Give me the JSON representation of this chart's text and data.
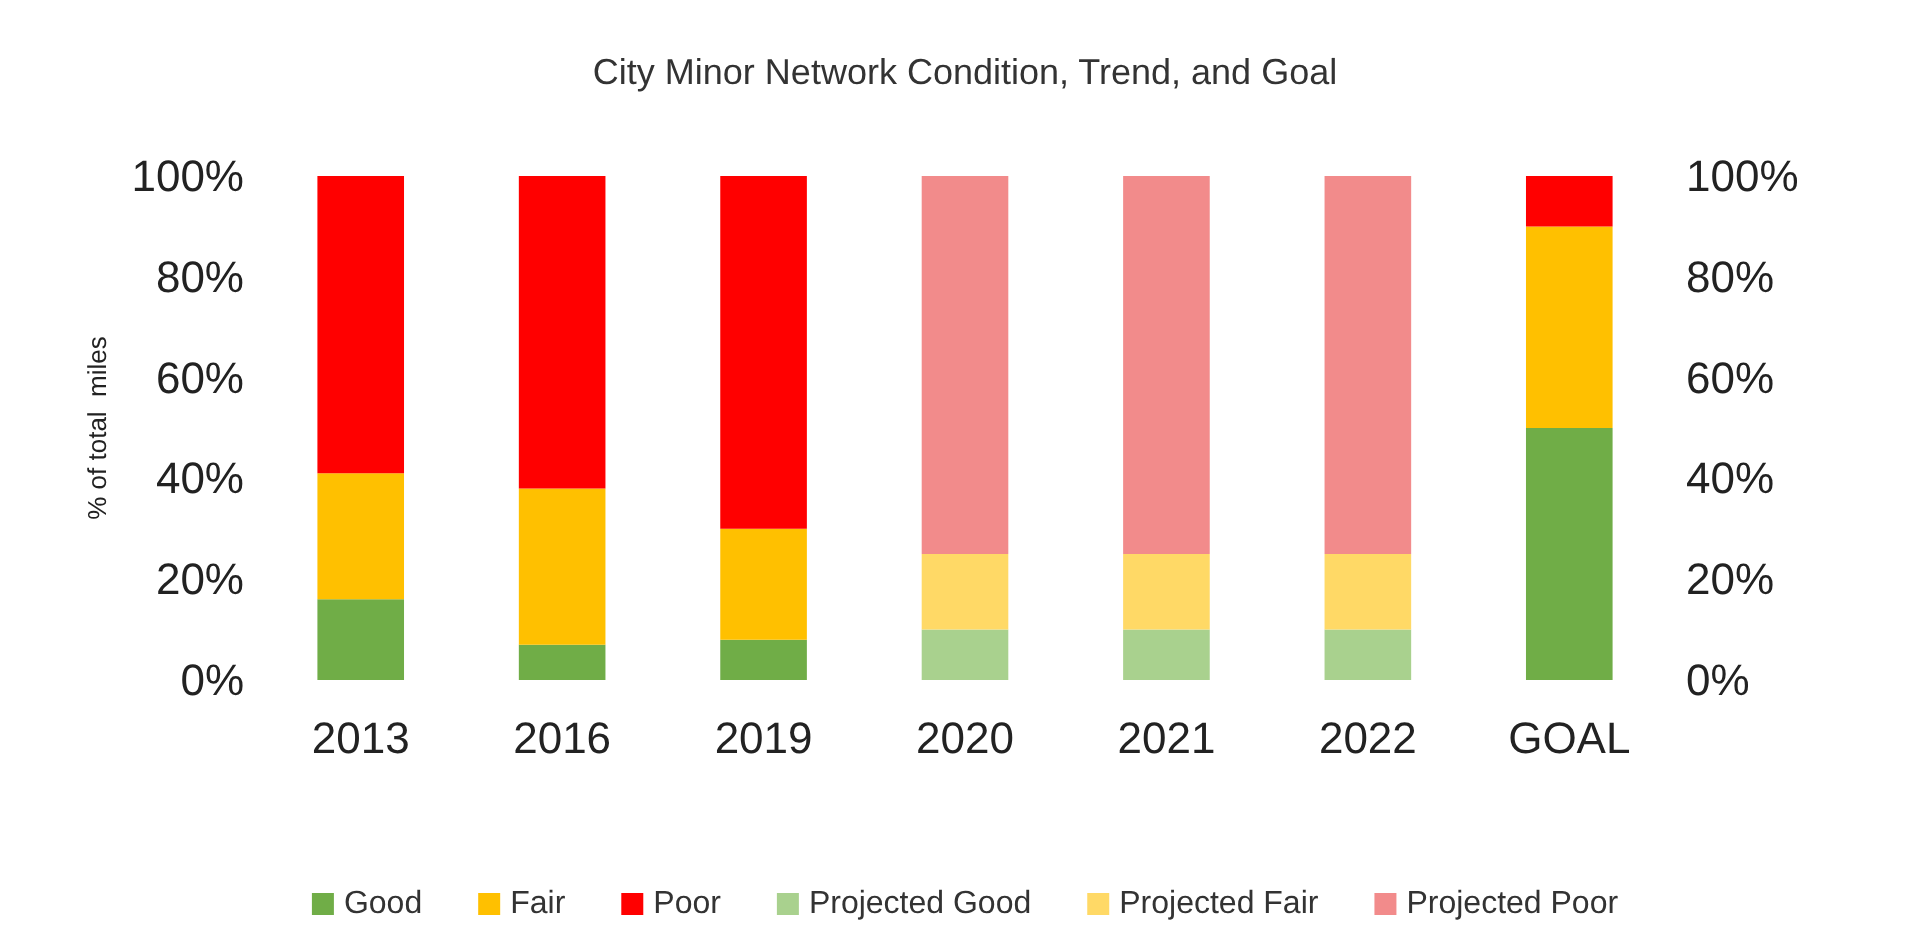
{
  "chart_data": {
    "type": "bar",
    "title": "City Minor Network Condition, Trend, and Goal",
    "ylabel": "% of total  miles",
    "stacked": true,
    "categories": [
      "2013",
      "2016",
      "2019",
      "2020",
      "2021",
      "2022",
      "GOAL"
    ],
    "series": [
      {
        "name": "Good",
        "color": "#70ad47",
        "values": [
          16,
          7,
          8,
          null,
          null,
          null,
          50
        ]
      },
      {
        "name": "Fair",
        "color": "#ffc000",
        "values": [
          25,
          31,
          22,
          null,
          null,
          null,
          40
        ]
      },
      {
        "name": "Poor",
        "color": "#ff0000",
        "values": [
          59,
          62,
          70,
          null,
          null,
          null,
          10
        ]
      },
      {
        "name": "Projected Good",
        "color": "#a9d18e",
        "values": [
          null,
          null,
          null,
          10,
          10,
          10,
          null
        ]
      },
      {
        "name": "Projected Fair",
        "color": "#ffd966",
        "values": [
          null,
          null,
          null,
          15,
          15,
          15,
          null
        ]
      },
      {
        "name": "Projected Poor",
        "color": "#f28b8b",
        "values": [
          null,
          null,
          null,
          75,
          75,
          75,
          null
        ]
      }
    ],
    "ylim": [
      0,
      100
    ],
    "yticks": [
      {
        "value": 0,
        "label": "0%"
      },
      {
        "value": 20,
        "label": "20%"
      },
      {
        "value": 40,
        "label": "40%"
      },
      {
        "value": 60,
        "label": "60%"
      },
      {
        "value": 80,
        "label": "80%"
      },
      {
        "value": 100,
        "label": "100%"
      }
    ],
    "y2lim": [
      0,
      100
    ],
    "y2ticks": [
      {
        "value": 0,
        "label": "0%"
      },
      {
        "value": 20,
        "label": "20%"
      },
      {
        "value": 40,
        "label": "40%"
      },
      {
        "value": 60,
        "label": "60%"
      },
      {
        "value": 80,
        "label": "80%"
      },
      {
        "value": 100,
        "label": "100%"
      }
    ],
    "legend": "bottom",
    "grid": false
  }
}
